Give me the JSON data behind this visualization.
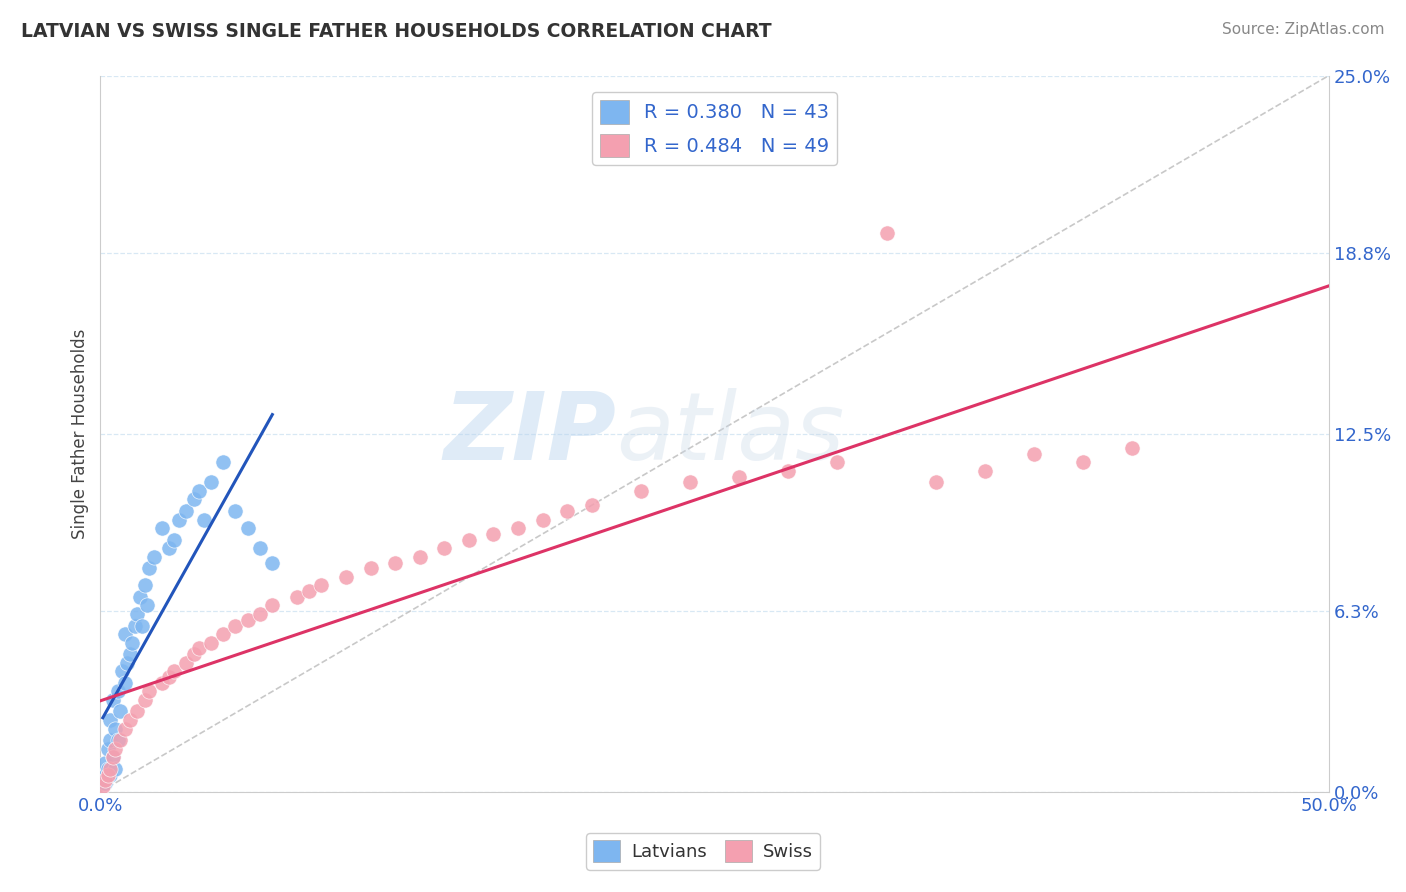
{
  "title": "LATVIAN VS SWISS SINGLE FATHER HOUSEHOLDS CORRELATION CHART",
  "source_text": "Source: ZipAtlas.com",
  "ylabel": "Single Father Households",
  "xlim": [
    0.0,
    0.5
  ],
  "ylim": [
    0.0,
    0.25
  ],
  "xtick_labels": [
    "0.0%",
    "50.0%"
  ],
  "ytick_labels": [
    "0.0%",
    "6.3%",
    "12.5%",
    "18.8%",
    "25.0%"
  ],
  "ytick_values": [
    0.0,
    0.063,
    0.125,
    0.188,
    0.25
  ],
  "latvian_color": "#7EB6F0",
  "swiss_color": "#F4A0B0",
  "latvian_R": 0.38,
  "latvian_N": 43,
  "swiss_R": 0.484,
  "swiss_N": 49,
  "latvian_line_color": "#2255BB",
  "swiss_line_color": "#DD3366",
  "watermark_zip": "ZIP",
  "watermark_atlas": "atlas",
  "background_color": "#FFFFFF",
  "grid_color": "#D8E8F4",
  "legend_R_color": "#3366CC",
  "latvian_x": [
    0.001,
    0.002,
    0.002,
    0.003,
    0.003,
    0.004,
    0.004,
    0.004,
    0.005,
    0.005,
    0.006,
    0.006,
    0.007,
    0.007,
    0.008,
    0.009,
    0.01,
    0.01,
    0.011,
    0.012,
    0.013,
    0.014,
    0.015,
    0.016,
    0.017,
    0.018,
    0.019,
    0.02,
    0.022,
    0.025,
    0.028,
    0.03,
    0.032,
    0.035,
    0.038,
    0.04,
    0.042,
    0.045,
    0.05,
    0.055,
    0.06,
    0.065,
    0.07
  ],
  "latvian_y": [
    0.005,
    0.01,
    0.003,
    0.008,
    0.015,
    0.006,
    0.018,
    0.025,
    0.012,
    0.032,
    0.008,
    0.022,
    0.018,
    0.035,
    0.028,
    0.042,
    0.038,
    0.055,
    0.045,
    0.048,
    0.052,
    0.058,
    0.062,
    0.068,
    0.058,
    0.072,
    0.065,
    0.078,
    0.082,
    0.092,
    0.085,
    0.088,
    0.095,
    0.098,
    0.102,
    0.105,
    0.095,
    0.108,
    0.115,
    0.098,
    0.092,
    0.085,
    0.08
  ],
  "swiss_x": [
    0.001,
    0.002,
    0.003,
    0.004,
    0.005,
    0.006,
    0.008,
    0.01,
    0.012,
    0.015,
    0.018,
    0.02,
    0.025,
    0.028,
    0.03,
    0.035,
    0.038,
    0.04,
    0.045,
    0.05,
    0.055,
    0.06,
    0.065,
    0.07,
    0.08,
    0.085,
    0.09,
    0.1,
    0.11,
    0.12,
    0.13,
    0.14,
    0.15,
    0.16,
    0.17,
    0.18,
    0.19,
    0.2,
    0.22,
    0.24,
    0.26,
    0.28,
    0.3,
    0.32,
    0.34,
    0.36,
    0.38,
    0.4,
    0.42
  ],
  "swiss_y": [
    0.002,
    0.004,
    0.006,
    0.008,
    0.012,
    0.015,
    0.018,
    0.022,
    0.025,
    0.028,
    0.032,
    0.035,
    0.038,
    0.04,
    0.042,
    0.045,
    0.048,
    0.05,
    0.052,
    0.055,
    0.058,
    0.06,
    0.062,
    0.065,
    0.068,
    0.07,
    0.072,
    0.075,
    0.078,
    0.08,
    0.082,
    0.085,
    0.088,
    0.09,
    0.092,
    0.095,
    0.098,
    0.1,
    0.105,
    0.108,
    0.11,
    0.112,
    0.115,
    0.195,
    0.108,
    0.112,
    0.118,
    0.115,
    0.12
  ]
}
